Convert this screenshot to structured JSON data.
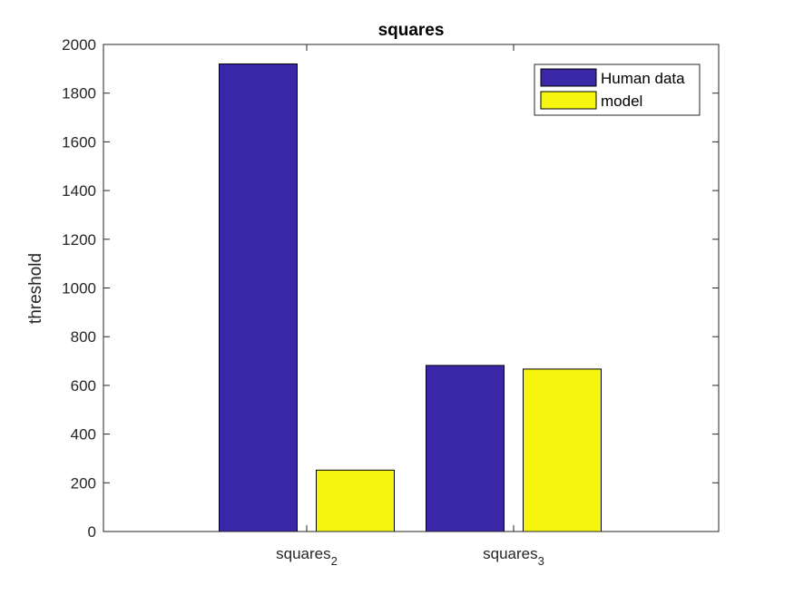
{
  "chart_data": {
    "type": "bar",
    "title": "squares",
    "xlabel": "",
    "ylabel": "threshold",
    "categories": [
      {
        "base": "squares",
        "sub": "2"
      },
      {
        "base": "squares",
        "sub": "3"
      }
    ],
    "series": [
      {
        "name": "Human data",
        "color": "#3a27a8",
        "values": [
          1920,
          682
        ]
      },
      {
        "name": "model",
        "color": "#f5f510",
        "values": [
          252,
          667
        ]
      }
    ],
    "ylim": [
      0,
      2000
    ],
    "yticks": [
      0,
      200,
      400,
      600,
      800,
      1000,
      1200,
      1400,
      1600,
      1800,
      2000
    ],
    "grid": false,
    "legend_position": "top-right"
  }
}
